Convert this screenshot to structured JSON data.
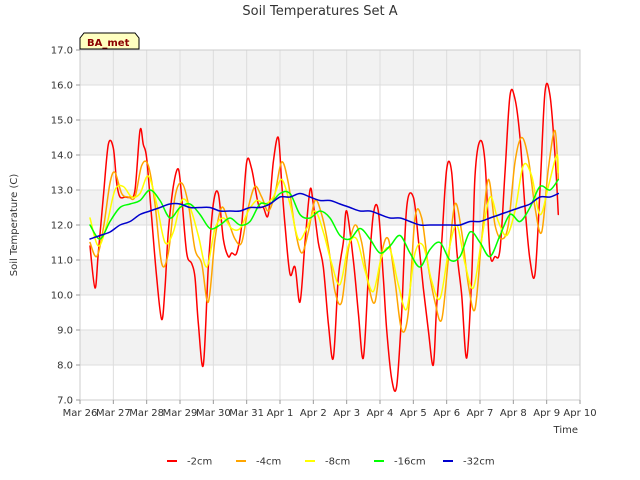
{
  "chart_data": {
    "type": "line",
    "title": "Soil Temperatures Set A",
    "xlabel": "Time",
    "ylabel": "Soil Temperature (C)",
    "badge": "BA_met",
    "ylim": [
      7.0,
      17.0
    ],
    "yticks": [
      "7.0",
      "8.0",
      "9.0",
      "10.0",
      "11.0",
      "12.0",
      "13.0",
      "14.0",
      "15.0",
      "16.0",
      "17.0"
    ],
    "xlim": [
      0,
      15
    ],
    "xticks": [
      "Mar 26",
      "Mar 27",
      "Mar 28",
      "Mar 29",
      "Mar 30",
      "Mar 31",
      "Apr 1",
      "Apr 2",
      "Apr 3",
      "Apr 4",
      "Apr 5",
      "Apr 6",
      "Apr 7",
      "Apr 8",
      "Apr 9",
      "Apr 10"
    ],
    "grid": true,
    "legend_position": "bottom",
    "series": [
      {
        "name": "-2cm",
        "color": "#ff0000",
        "x": [
          0.3,
          0.45,
          0.55,
          0.7,
          0.85,
          1.0,
          1.1,
          1.2,
          1.35,
          1.5,
          1.65,
          1.8,
          1.9,
          2.0,
          2.15,
          2.3,
          2.45,
          2.55,
          2.65,
          2.8,
          2.95,
          3.05,
          3.2,
          3.35,
          3.45,
          3.55,
          3.7,
          3.85,
          4.0,
          4.15,
          4.3,
          4.45,
          4.55,
          4.7,
          4.85,
          5.0,
          5.15,
          5.35,
          5.5,
          5.65,
          5.8,
          5.95,
          6.05,
          6.15,
          6.3,
          6.45,
          6.6,
          6.75,
          6.9,
          7.0,
          7.15,
          7.3,
          7.45,
          7.6,
          7.75,
          7.9,
          8.0,
          8.2,
          8.35,
          8.5,
          8.65,
          8.8,
          8.95,
          9.1,
          9.2,
          9.35,
          9.5,
          9.65,
          9.8,
          10.0,
          10.15,
          10.3,
          10.45,
          10.6,
          10.7,
          10.85,
          11.0,
          11.15,
          11.3,
          11.45,
          11.6,
          11.75,
          11.85,
          12.0,
          12.15,
          12.3,
          12.45,
          12.6,
          12.75,
          12.9,
          13.05,
          13.2,
          13.35,
          13.5,
          13.65,
          13.8,
          13.95,
          14.1,
          14.25,
          14.35
        ],
        "y": [
          11.4,
          10.2,
          11.2,
          12.8,
          14.3,
          14.2,
          13.2,
          12.8,
          12.8,
          12.8,
          13.0,
          14.7,
          14.3,
          13.9,
          12.2,
          10.5,
          9.3,
          10.2,
          11.8,
          13.1,
          13.6,
          12.8,
          11.2,
          10.9,
          10.5,
          9.2,
          8.0,
          10.8,
          12.6,
          12.9,
          11.6,
          11.1,
          11.2,
          11.2,
          12.0,
          13.8,
          13.6,
          12.6,
          12.5,
          12.3,
          13.8,
          14.5,
          13.2,
          12.0,
          10.6,
          10.8,
          9.8,
          11.5,
          13.0,
          12.6,
          11.5,
          10.8,
          9.2,
          8.2,
          10.5,
          11.5,
          12.4,
          11.0,
          9.5,
          8.2,
          10.5,
          12.3,
          12.4,
          10.5,
          9.0,
          7.6,
          7.4,
          9.5,
          12.5,
          12.8,
          11.6,
          10.2,
          9.0,
          8.0,
          9.7,
          11.5,
          13.6,
          13.5,
          11.3,
          10.0,
          8.2,
          10.5,
          13.4,
          14.4,
          13.8,
          11.2,
          11.1,
          11.3,
          13.5,
          15.7,
          15.6,
          14.5,
          12.5,
          11.0,
          10.6,
          13.0,
          15.8,
          15.7,
          14.0,
          12.3
        ]
      },
      {
        "name": "-4cm",
        "color": "#ffa500",
        "x": [
          0.3,
          0.5,
          0.7,
          0.9,
          1.05,
          1.25,
          1.45,
          1.65,
          1.85,
          2.05,
          2.25,
          2.45,
          2.65,
          2.85,
          3.05,
          3.25,
          3.45,
          3.65,
          3.85,
          4.05,
          4.25,
          4.45,
          4.65,
          4.85,
          5.05,
          5.25,
          5.45,
          5.65,
          5.85,
          6.05,
          6.25,
          6.45,
          6.65,
          6.85,
          7.05,
          7.25,
          7.45,
          7.65,
          7.85,
          8.05,
          8.25,
          8.45,
          8.65,
          8.85,
          9.05,
          9.25,
          9.45,
          9.65,
          9.85,
          10.05,
          10.25,
          10.45,
          10.65,
          10.85,
          11.05,
          11.25,
          11.45,
          11.65,
          11.85,
          12.05,
          12.25,
          12.45,
          12.65,
          12.85,
          13.05,
          13.25,
          13.45,
          13.65,
          13.85,
          14.05,
          14.25,
          14.35
        ],
        "y": [
          11.5,
          11.1,
          11.9,
          13.2,
          13.5,
          12.9,
          12.8,
          12.8,
          13.7,
          13.7,
          12.6,
          10.9,
          11.2,
          12.8,
          13.2,
          12.6,
          11.3,
          10.9,
          9.8,
          11.6,
          12.5,
          12.1,
          11.6,
          11.5,
          12.5,
          13.1,
          12.8,
          12.4,
          12.9,
          13.8,
          13.2,
          11.9,
          11.2,
          11.8,
          12.7,
          12.3,
          11.4,
          10.1,
          9.8,
          11.3,
          12.0,
          11.5,
          10.3,
          9.8,
          11.2,
          11.6,
          10.4,
          9.0,
          9.5,
          12.2,
          12.2,
          10.8,
          9.8,
          9.3,
          11.0,
          12.6,
          11.8,
          10.3,
          9.6,
          11.6,
          13.3,
          12.0,
          11.6,
          12.0,
          13.8,
          14.5,
          13.9,
          12.5,
          11.8,
          13.6,
          14.7,
          13.3
        ]
      },
      {
        "name": "-8cm",
        "color": "#ffff00",
        "x": [
          0.3,
          0.55,
          0.8,
          1.05,
          1.3,
          1.55,
          1.8,
          2.05,
          2.3,
          2.55,
          2.8,
          3.05,
          3.3,
          3.55,
          3.8,
          4.05,
          4.3,
          4.55,
          4.8,
          5.05,
          5.3,
          5.55,
          5.8,
          6.05,
          6.3,
          6.55,
          6.8,
          7.05,
          7.3,
          7.55,
          7.8,
          8.05,
          8.3,
          8.55,
          8.8,
          9.05,
          9.3,
          9.55,
          9.8,
          10.05,
          10.3,
          10.55,
          10.8,
          11.05,
          11.3,
          11.55,
          11.8,
          12.05,
          12.3,
          12.55,
          12.8,
          13.05,
          13.3,
          13.55,
          13.8,
          14.05,
          14.3,
          14.35
        ],
        "y": [
          12.2,
          11.4,
          12.0,
          13.0,
          13.1,
          12.8,
          12.9,
          13.4,
          12.6,
          11.5,
          11.8,
          12.7,
          12.5,
          11.7,
          10.8,
          11.9,
          12.2,
          11.9,
          11.9,
          12.4,
          12.7,
          12.6,
          12.8,
          13.3,
          12.6,
          11.6,
          11.9,
          12.4,
          11.8,
          10.9,
          10.3,
          11.4,
          11.6,
          10.7,
          10.1,
          11.1,
          11.3,
          10.3,
          9.6,
          11.2,
          11.4,
          10.4,
          9.9,
          11.2,
          12.0,
          10.9,
          10.2,
          11.6,
          12.8,
          12.1,
          11.7,
          12.4,
          13.7,
          13.4,
          12.3,
          13.1,
          14.0,
          13.5
        ]
      },
      {
        "name": "-16cm",
        "color": "#00ff00",
        "x": [
          0.3,
          0.6,
          0.9,
          1.2,
          1.5,
          1.8,
          2.1,
          2.4,
          2.7,
          3.0,
          3.3,
          3.6,
          3.9,
          4.2,
          4.5,
          4.8,
          5.1,
          5.4,
          5.7,
          6.0,
          6.3,
          6.6,
          6.9,
          7.2,
          7.5,
          7.8,
          8.1,
          8.4,
          8.7,
          9.0,
          9.3,
          9.6,
          9.9,
          10.2,
          10.5,
          10.8,
          11.1,
          11.4,
          11.7,
          12.0,
          12.3,
          12.6,
          12.9,
          13.2,
          13.5,
          13.8,
          14.1,
          14.35
        ],
        "y": [
          12.0,
          11.6,
          12.1,
          12.5,
          12.6,
          12.7,
          13.0,
          12.7,
          12.2,
          12.5,
          12.6,
          12.3,
          11.9,
          12.0,
          12.2,
          12.0,
          12.1,
          12.6,
          12.6,
          12.9,
          12.9,
          12.3,
          12.2,
          12.4,
          12.2,
          11.7,
          11.6,
          11.9,
          11.6,
          11.2,
          11.4,
          11.7,
          11.2,
          10.8,
          11.3,
          11.5,
          11.0,
          11.1,
          11.8,
          11.5,
          11.1,
          11.7,
          12.3,
          12.1,
          12.5,
          13.1,
          13.0,
          13.3
        ]
      },
      {
        "name": "-32cm",
        "color": "#0000cd",
        "x": [
          0.3,
          0.6,
          0.9,
          1.2,
          1.5,
          1.8,
          2.1,
          2.4,
          2.7,
          3.0,
          3.3,
          3.6,
          3.9,
          4.2,
          4.5,
          4.8,
          5.1,
          5.4,
          5.7,
          6.0,
          6.3,
          6.6,
          6.9,
          7.2,
          7.5,
          7.8,
          8.1,
          8.4,
          8.7,
          9.0,
          9.3,
          9.6,
          9.9,
          10.2,
          10.5,
          10.8,
          11.1,
          11.4,
          11.7,
          12.0,
          12.3,
          12.6,
          12.9,
          13.2,
          13.5,
          13.8,
          14.1,
          14.35
        ],
        "y": [
          11.6,
          11.7,
          11.8,
          12.0,
          12.1,
          12.3,
          12.4,
          12.5,
          12.6,
          12.6,
          12.5,
          12.5,
          12.5,
          12.4,
          12.4,
          12.4,
          12.5,
          12.5,
          12.6,
          12.8,
          12.8,
          12.9,
          12.8,
          12.7,
          12.7,
          12.6,
          12.5,
          12.4,
          12.4,
          12.3,
          12.2,
          12.2,
          12.1,
          12.0,
          12.0,
          12.0,
          12.0,
          12.0,
          12.1,
          12.1,
          12.2,
          12.3,
          12.4,
          12.5,
          12.6,
          12.8,
          12.8,
          12.9
        ]
      }
    ]
  }
}
